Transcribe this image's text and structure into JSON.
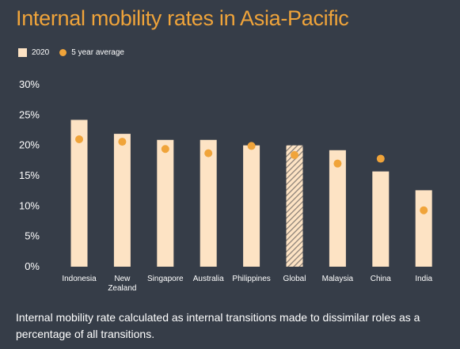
{
  "chart_data": {
    "type": "bar",
    "title": "Internal mobility rates in Asia-Pacific",
    "categories": [
      "Indonesia",
      "New Zealand",
      "Singapore",
      "Australia",
      "Philippines",
      "Global",
      "Malaysia",
      "China",
      "India"
    ],
    "series": [
      {
        "name": "2020",
        "values": [
          24.2,
          21.9,
          20.9,
          20.9,
          20.0,
          20.0,
          19.2,
          15.7,
          12.6
        ]
      },
      {
        "name": "5 year average",
        "values": [
          21.0,
          20.6,
          19.4,
          18.7,
          19.9,
          18.4,
          17.0,
          17.8,
          9.3
        ]
      }
    ],
    "highlighted_category": "Global",
    "ylim": [
      0,
      30
    ],
    "yticks": [
      "0%",
      "5%",
      "10%",
      "15%",
      "20%",
      "25%",
      "30%"
    ],
    "grid": false,
    "legend_position": "top-left",
    "colors": {
      "bar": "#fde3c4",
      "dot": "#f0a43a",
      "title": "#f0a43a",
      "background": "#363d48",
      "hatch": "#8d8278"
    }
  },
  "footnote": "Internal mobility rate calculated as internal transitions made to dissimilar roles as a percentage of all transitions."
}
